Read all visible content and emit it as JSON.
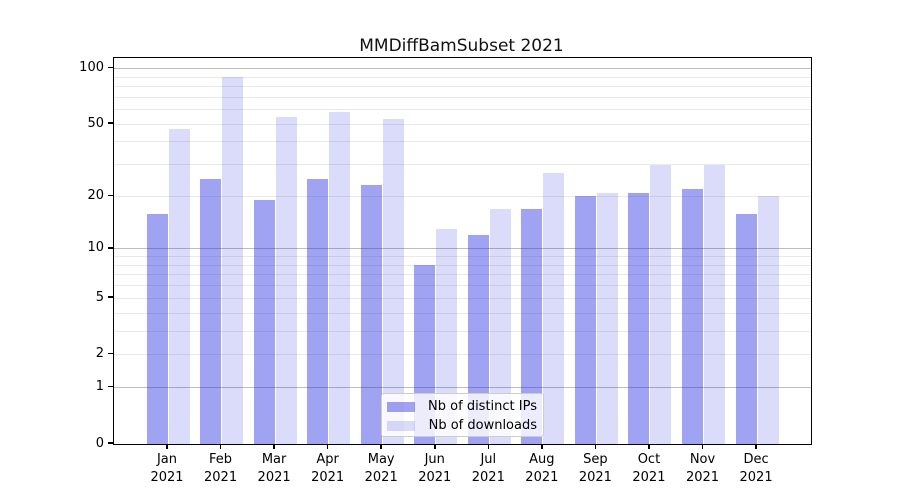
{
  "chart_data": {
    "type": "bar",
    "title": "MMDiffBamSubset 2021",
    "categories": [
      "Jan",
      "Feb",
      "Mar",
      "Apr",
      "May",
      "Jun",
      "Jul",
      "Aug",
      "Sep",
      "Oct",
      "Nov",
      "Dec"
    ],
    "x_tick_year": "2021",
    "series": [
      {
        "name": "Nb of distinct IPs",
        "fill": "rgba(28,33,224,0.42)",
        "values": [
          16,
          25,
          19,
          25,
          23,
          8,
          12,
          17,
          20,
          21,
          22,
          16
        ]
      },
      {
        "name": "Nb of downloads",
        "fill": "rgba(28,33,224,0.16)",
        "values": [
          47,
          90,
          55,
          58,
          53,
          13,
          17,
          27,
          21,
          30,
          30,
          20
        ]
      }
    ],
    "y_axis": {
      "scale": "log1p",
      "ticks": [
        0,
        1,
        2,
        5,
        10,
        20,
        50,
        100
      ],
      "max_value": 114,
      "major_gridlines": [
        1,
        10,
        100
      ],
      "minor_gridlines": [
        2,
        3,
        4,
        5,
        6,
        7,
        8,
        9,
        20,
        30,
        40,
        50,
        60,
        70,
        80,
        90
      ]
    },
    "legend_position": "lower center",
    "grid": true
  },
  "colors": {
    "major_grid": "#bdbdbd",
    "minor_grid": "#e9e9e9",
    "axis": "#000000",
    "text": "#000000",
    "background": "#ffffff"
  }
}
